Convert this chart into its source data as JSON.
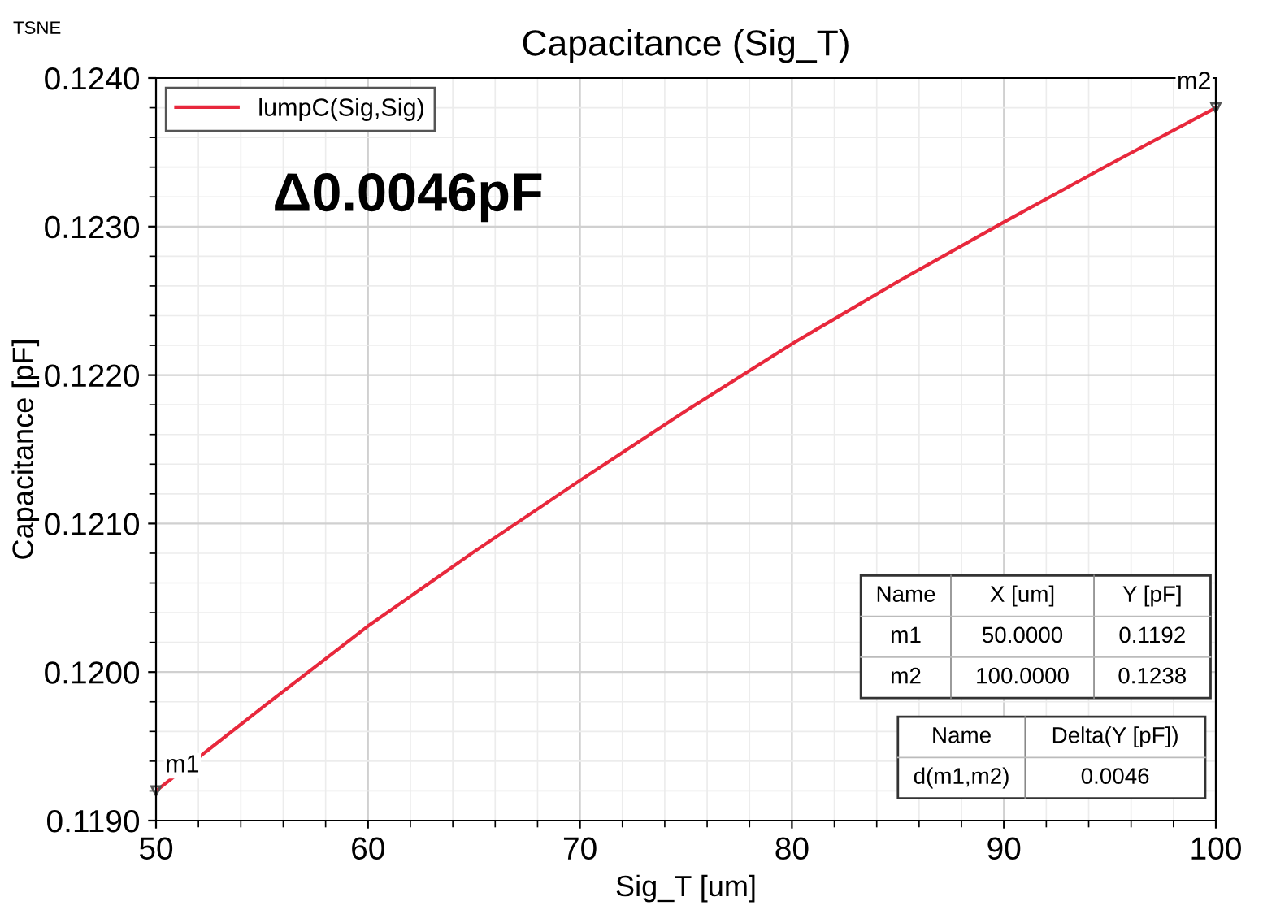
{
  "chart_data": {
    "type": "line",
    "title": "Capacitance (Sig_T)",
    "xlabel": "Sig_T [um]",
    "ylabel": "Capacitance [pF]",
    "x": [
      50,
      55,
      60,
      65,
      70,
      75,
      80,
      85,
      90,
      95,
      100
    ],
    "series": [
      {
        "name": "lumpC(Sig,Sig)",
        "color": "#e8283c",
        "values": [
          0.1192,
          0.11976,
          0.12031,
          0.12081,
          0.12129,
          0.12176,
          0.12221,
          0.12263,
          0.12303,
          0.12342,
          0.1238
        ]
      }
    ],
    "xlim": [
      50,
      100
    ],
    "xticks": [
      50,
      60,
      70,
      80,
      90,
      100
    ],
    "ylim": [
      0.119,
      0.124
    ],
    "yticks": [
      {
        "value": 0.119,
        "label": "0.1190"
      },
      {
        "value": 0.12,
        "label": "0.1200"
      },
      {
        "value": 0.121,
        "label": "0.1210"
      },
      {
        "value": 0.122,
        "label": "0.1220"
      },
      {
        "value": 0.123,
        "label": "0.1230"
      },
      {
        "value": 0.124,
        "label": "0.1240"
      }
    ],
    "grid": true,
    "legend": "top left",
    "marker": "none",
    "line_style": "solid",
    "annotations": [
      "TSNE",
      "Δ0.0046pF",
      "Name",
      "X [um]",
      "Y [pF]",
      "m1",
      "50.0000",
      "0.1192",
      "m2",
      "100.0000",
      "0.1238",
      "Name",
      "Delta(Y [pF])",
      "d(m1,m2)",
      "0.0046",
      {
        "text": "m1",
        "x": 50,
        "y": 0.1192
      },
      {
        "text": "m2",
        "x": 100,
        "y": 0.1238
      }
    ]
  }
}
